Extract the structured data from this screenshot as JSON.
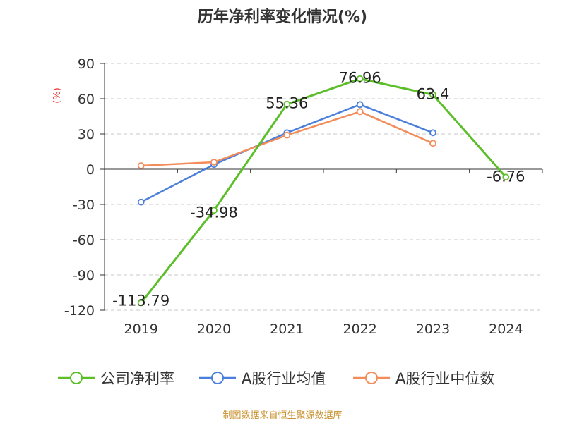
{
  "title": "历年净利率变化情况(%)",
  "unit_label": "(%)",
  "source": "制图数据来自恒生聚源数据库",
  "chart_data": {
    "type": "line",
    "title": "历年净利率变化情况(%)",
    "ylabel": "(%)",
    "ylim": [
      -120,
      90
    ],
    "yticks": [
      90,
      60,
      30,
      0,
      -30,
      -60,
      -90,
      -120
    ],
    "categories": [
      "2019",
      "2020",
      "2021",
      "2022",
      "2023",
      "2024"
    ],
    "grid": true,
    "legend_position": "bottom",
    "series": [
      {
        "name": "公司净利率",
        "color": "#5cbf2a",
        "values": [
          -113.79,
          -34.98,
          55.36,
          76.96,
          63.4,
          -6.76
        ],
        "labels": [
          "-113.79",
          "-34.98",
          "55.36",
          "76.96",
          "63.4",
          "-6.76"
        ]
      },
      {
        "name": "A股行业均值",
        "color": "#4a7fdc",
        "values": [
          -28,
          4,
          31,
          55,
          31,
          null
        ]
      },
      {
        "name": "A股行业中位数",
        "color": "#f28c5a",
        "values": [
          3,
          6,
          29,
          49,
          22,
          null
        ]
      }
    ]
  }
}
